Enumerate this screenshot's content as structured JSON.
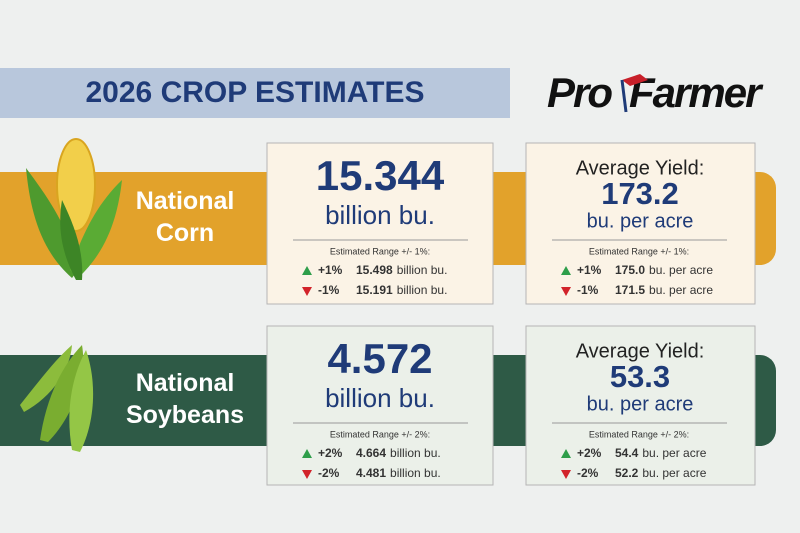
{
  "header": {
    "title": "2026 CROP ESTIMATES",
    "logo": {
      "pre": "Pro",
      "post": "Farmer"
    }
  },
  "crops": [
    {
      "label": [
        "National",
        "Corn"
      ],
      "production": {
        "value": "15.344",
        "unit": "billion bu.",
        "range_label": "Estimated Range +/- 1%:",
        "high": {
          "change": "+1%",
          "value": "15.498",
          "unit": "billion bu."
        },
        "low": {
          "change": "-1%",
          "value": "15.191",
          "unit": "billion bu."
        }
      },
      "yield": {
        "label": "Average Yield:",
        "value": "173.2",
        "unit": "bu. per acre",
        "range_label": "Estimated Range +/- 1%:",
        "high": {
          "change": "+1%",
          "value": "175.0",
          "unit": "bu. per acre"
        },
        "low": {
          "change": "-1%",
          "value": "171.5",
          "unit": "bu. per acre"
        }
      }
    },
    {
      "label": [
        "National",
        "Soybeans"
      ],
      "production": {
        "value": "4.572",
        "unit": "billion bu.",
        "range_label": "Estimated Range +/- 2%:",
        "high": {
          "change": "+2%",
          "value": "4.664",
          "unit": "billion bu."
        },
        "low": {
          "change": "-2%",
          "value": "4.481",
          "unit": "billion bu."
        }
      },
      "yield": {
        "label": "Average Yield:",
        "value": "53.3",
        "unit": "bu. per acre",
        "range_label": "Estimated Range +/- 2%:",
        "high": {
          "change": "+2%",
          "value": "54.4",
          "unit": "bu. per acre"
        },
        "low": {
          "change": "-2%",
          "value": "52.2",
          "unit": "bu. per acre"
        }
      }
    }
  ]
}
